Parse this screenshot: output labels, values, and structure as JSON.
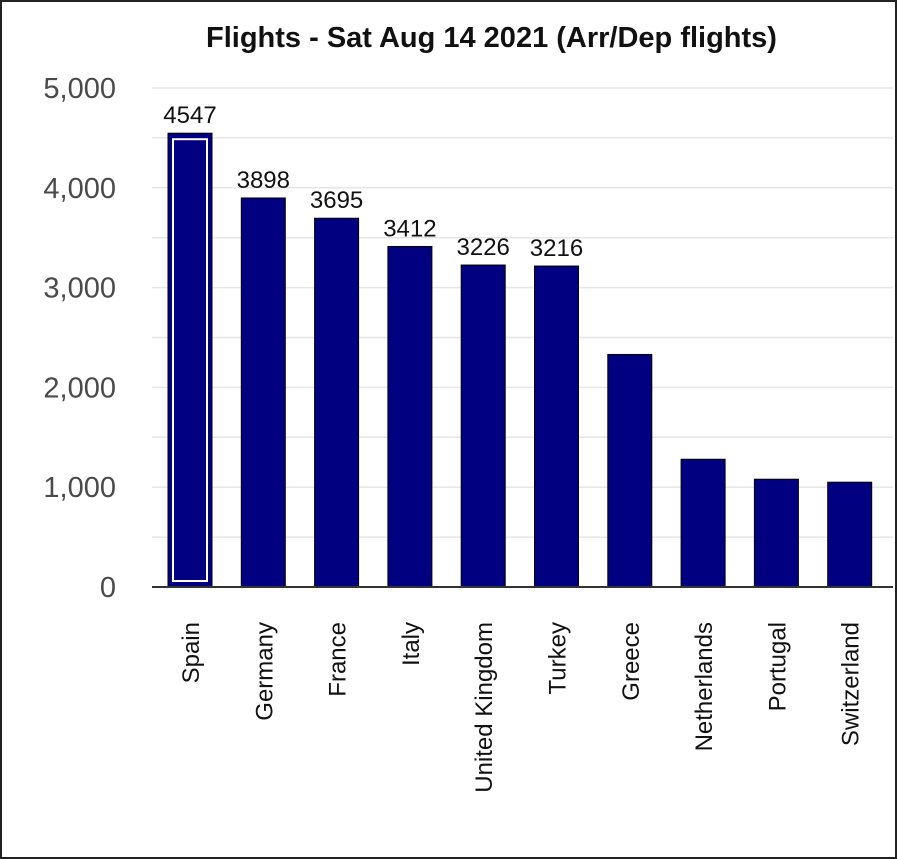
{
  "chart_data": {
    "type": "bar",
    "title": "Flights - Sat Aug 14 2021 (Arr/Dep flights)",
    "xlabel": "",
    "ylabel": "",
    "categories": [
      "Spain",
      "Germany",
      "France",
      "Italy",
      "United Kingdom",
      "Turkey",
      "Greece",
      "Netherlands",
      "Portugal",
      "Switzerland"
    ],
    "values": [
      4547,
      3898,
      3695,
      3412,
      3226,
      3216,
      2330,
      1280,
      1080,
      1050
    ],
    "data_labels": [
      "4547",
      "3898",
      "3695",
      "3412",
      "3226",
      "3216",
      null,
      null,
      null,
      null
    ],
    "highlighted_category": "Spain",
    "ylim": [
      0,
      5000
    ],
    "yticks": [
      0,
      1000,
      2000,
      3000,
      4000,
      5000
    ],
    "ytick_labels": [
      "0",
      "1,000",
      "2,000",
      "3,000",
      "4,000",
      "5,000"
    ],
    "grid": true,
    "legend": "none",
    "bar_color": "#000080",
    "highlight_outline_color": "#ffffff",
    "grid_color": "#e6e6e6"
  }
}
